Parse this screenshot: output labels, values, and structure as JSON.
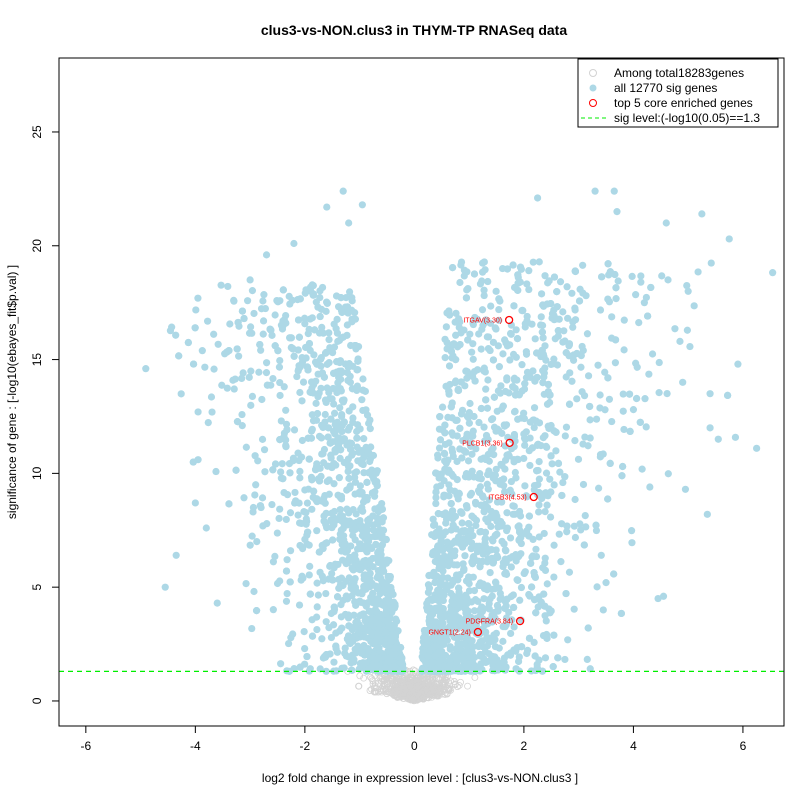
{
  "chart_data": {
    "type": "scatter",
    "title": "clus3-vs-NON.clus3 in THYM-TP RNASeq data",
    "xlabel": "log2 fold change in expression level : [clus3-vs-NON.clus3 ]",
    "ylabel": "significance of gene : [-log10(ebayes_fit$p.val) ]",
    "xlim": [
      -6.49,
      6.75
    ],
    "ylim": [
      -1.1,
      28.25
    ],
    "xticks": [
      -6,
      -4,
      -2,
      0,
      2,
      4,
      6
    ],
    "yticks": [
      0,
      5,
      10,
      15,
      20,
      25
    ],
    "sig_threshold": 1.3,
    "legend": {
      "position": "top-right",
      "entries": [
        {
          "label": "Among total18283genes",
          "color": "#d3d3d3",
          "shape": "open-circle"
        },
        {
          "label": "all 12770 sig genes",
          "color": "#add8e6",
          "shape": "filled-circle"
        },
        {
          "label": "top 5 core enriched genes",
          "color": "#ff0000",
          "shape": "open-circle"
        },
        {
          "label": "sig level:(-log10(0.05)==1.3",
          "color": "#00ee00",
          "shape": "dashed-line"
        }
      ]
    },
    "total_genes": 18283,
    "sig_genes": 12770,
    "highlighted_genes": [
      {
        "label": "ITGAV(3.30)",
        "x": 1.73,
        "y": 16.74
      },
      {
        "label": "PLCB1(3.36)",
        "x": 1.74,
        "y": 11.34
      },
      {
        "label": "ITGB3(4.53)",
        "x": 2.18,
        "y": 8.96
      },
      {
        "label": "PDGFRA(3.84)",
        "x": 1.93,
        "y": 3.51
      },
      {
        "label": "GNGT1(2.24)",
        "x": 1.16,
        "y": 3.03
      }
    ],
    "outlier_points": [
      [
        -4.55,
        5.0
      ],
      [
        -4.35,
        6.4
      ],
      [
        -3.95,
        12.7
      ],
      [
        -3.95,
        10.6
      ],
      [
        -3.3,
        17.6
      ],
      [
        -4.0,
        8.7
      ],
      [
        -3.6,
        4.3
      ],
      [
        -3.8,
        7.6
      ],
      [
        -1.3,
        22.4
      ],
      [
        -1.6,
        21.7
      ],
      [
        -1.2,
        21.0
      ],
      [
        -0.95,
        21.8
      ],
      [
        -2.2,
        20.1
      ],
      [
        -2.7,
        19.6
      ],
      [
        -3.0,
        18.5
      ],
      [
        5.75,
        20.3
      ],
      [
        6.25,
        11.1
      ],
      [
        5.25,
        21.4
      ],
      [
        5.35,
        8.2
      ],
      [
        4.95,
        9.3
      ],
      [
        5.0,
        18.0
      ],
      [
        4.6,
        21.0
      ],
      [
        4.55,
        4.6
      ],
      [
        4.45,
        4.5
      ],
      [
        5.4,
        12.0
      ],
      [
        5.55,
        11.5
      ],
      [
        4.9,
        14.0
      ],
      [
        4.85,
        15.8
      ],
      [
        3.65,
        22.4
      ],
      [
        3.3,
        22.4
      ],
      [
        2.25,
        22.1
      ],
      [
        3.7,
        21.5
      ],
      [
        5.4,
        13.5
      ],
      [
        4.2,
        17.5
      ],
      [
        4.0,
        12.8
      ],
      [
        4.3,
        9.4
      ],
      [
        3.5,
        5.2
      ],
      [
        3.45,
        4.0
      ]
    ]
  }
}
